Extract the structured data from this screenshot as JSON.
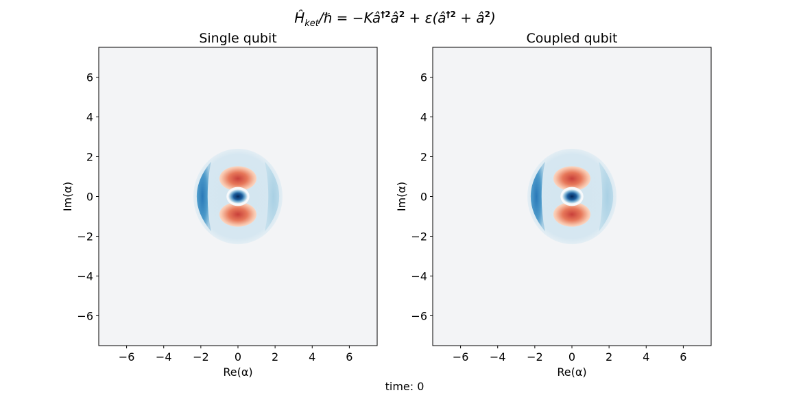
{
  "figure": {
    "title": "Ĥ_ket/ℏ = −Kâ†²â² + ε(â†² + â²)",
    "title_parts": {
      "h": "Ĥ",
      "sub": "ket",
      "mid": "/ℏ = −Kâ",
      "sup1": "†2",
      "a2": "â",
      "sup2": "2",
      "plus": " + ε(â",
      "sup3": "†2",
      "plus2": " + â",
      "sup4": "2",
      "close": ")"
    },
    "caption": "time: 0"
  },
  "chart_data": [
    {
      "type": "heatmap",
      "title": "Single qubit",
      "xlabel": "Re(α)",
      "ylabel": "Im(α)",
      "xlim": [
        -7.5,
        7.5
      ],
      "ylim": [
        -7.5,
        7.5
      ],
      "xticks": [
        -6,
        -4,
        -2,
        0,
        2,
        4,
        6
      ],
      "yticks": [
        -6,
        -4,
        -2,
        0,
        2,
        4,
        6
      ],
      "xtick_labels": [
        "−6",
        "−4",
        "−2",
        "0",
        "2",
        "4",
        "6"
      ],
      "ytick_labels": [
        "−6",
        "−4",
        "−2",
        "0",
        "2",
        "4",
        "6"
      ],
      "colormap": "RdBu",
      "background": "#f3f4f6",
      "features": [
        {
          "shape": "disk",
          "center": [
            0,
            0
          ],
          "radius": 2.4,
          "value": "light-blue",
          "color": "#d6e7f1"
        },
        {
          "shape": "crescent",
          "center": [
            -1.6,
            0
          ],
          "side": "left",
          "value": "blue",
          "color": "#3f8fc4"
        },
        {
          "shape": "crescent",
          "center": [
            1.6,
            0
          ],
          "side": "right",
          "value": "light-blue",
          "color": "#b2d4e6"
        },
        {
          "shape": "lobe",
          "center": [
            0,
            0.9
          ],
          "value": "red",
          "color": "#e6704f"
        },
        {
          "shape": "lobe",
          "center": [
            0,
            -0.9
          ],
          "value": "red",
          "color": "#e6704f"
        },
        {
          "shape": "core",
          "center": [
            0,
            0
          ],
          "value": "dark-blue",
          "color": "#053061"
        }
      ]
    },
    {
      "type": "heatmap",
      "title": "Coupled qubit",
      "xlabel": "Re(α)",
      "ylabel": "Im(α)",
      "xlim": [
        -7.5,
        7.5
      ],
      "ylim": [
        -7.5,
        7.5
      ],
      "xticks": [
        -6,
        -4,
        -2,
        0,
        2,
        4,
        6
      ],
      "yticks": [
        -6,
        -4,
        -2,
        0,
        2,
        4,
        6
      ],
      "xtick_labels": [
        "−6",
        "−4",
        "−2",
        "0",
        "2",
        "4",
        "6"
      ],
      "ytick_labels": [
        "−6",
        "−4",
        "−2",
        "0",
        "2",
        "4",
        "6"
      ],
      "colormap": "RdBu",
      "background": "#f3f4f6",
      "features": [
        {
          "shape": "disk",
          "center": [
            0,
            0
          ],
          "radius": 2.4,
          "value": "light-blue",
          "color": "#d6e7f1"
        },
        {
          "shape": "crescent",
          "center": [
            -1.6,
            0
          ],
          "side": "left",
          "value": "blue",
          "color": "#3f8fc4"
        },
        {
          "shape": "crescent",
          "center": [
            1.6,
            0
          ],
          "side": "right",
          "value": "light-blue",
          "color": "#b2d4e6"
        },
        {
          "shape": "lobe",
          "center": [
            0,
            0.9
          ],
          "value": "red",
          "color": "#e6704f"
        },
        {
          "shape": "lobe",
          "center": [
            0,
            -0.9
          ],
          "value": "red",
          "color": "#e6704f"
        },
        {
          "shape": "core",
          "center": [
            0,
            0
          ],
          "value": "dark-blue",
          "color": "#053061"
        }
      ]
    }
  ]
}
